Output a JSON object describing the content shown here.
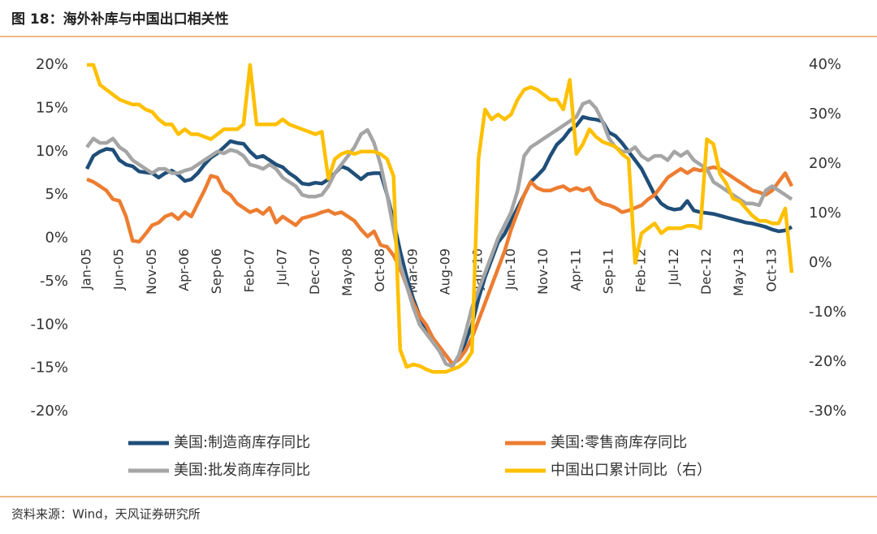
{
  "chart_data": {
    "type": "line",
    "title": "图 18：海外补库与中国出口相关性",
    "source": "资料来源：Wind，天风证券研究所",
    "categories": [
      "Jan-05",
      null,
      null,
      null,
      null,
      "Jun-05",
      null,
      null,
      null,
      null,
      "Nov-05",
      null,
      null,
      null,
      null,
      "Apr-06",
      null,
      null,
      null,
      null,
      "Sep-06",
      null,
      null,
      null,
      null,
      "Feb-07",
      null,
      null,
      null,
      null,
      "Jul-07",
      null,
      null,
      null,
      null,
      "Dec-07",
      null,
      null,
      null,
      null,
      "May-08",
      null,
      null,
      null,
      null,
      "Oct-08",
      null,
      null,
      null,
      null,
      "Mar-09",
      null,
      null,
      null,
      null,
      "Aug-09",
      null,
      null,
      null,
      null,
      "Jan-10",
      null,
      null,
      null,
      null,
      "Jun-10",
      null,
      null,
      null,
      null,
      "Nov-10",
      null,
      null,
      null,
      null,
      "Apr-11",
      null,
      null,
      null,
      null,
      "Sep-11",
      null,
      null,
      null,
      null,
      "Feb-12",
      null,
      null,
      null,
      null,
      "Jul-12",
      null,
      null,
      null,
      null,
      "Dec-12",
      null,
      null,
      null,
      null,
      "May-13",
      null,
      null,
      null,
      null,
      "Oct-13",
      null,
      null,
      null
    ],
    "ylim": [
      -20,
      20
    ],
    "yticks": [
      {
        "value": -20,
        "label": "-20%"
      },
      {
        "value": -15,
        "label": "-15%"
      },
      {
        "value": -10,
        "label": "-10%"
      },
      {
        "value": -5,
        "label": "-5%"
      },
      {
        "value": 0,
        "label": "0%"
      },
      {
        "value": 5,
        "label": "5%"
      },
      {
        "value": 10,
        "label": "10%"
      },
      {
        "value": 15,
        "label": "15%"
      },
      {
        "value": 20,
        "label": "20%"
      }
    ],
    "y2lim": [
      -30,
      40
    ],
    "y2ticks": [
      {
        "value": -30,
        "label": "-30%"
      },
      {
        "value": -20,
        "label": "-20%"
      },
      {
        "value": -10,
        "label": "-10%"
      },
      {
        "value": 0,
        "label": "0%"
      },
      {
        "value": 10,
        "label": "10%"
      },
      {
        "value": 20,
        "label": "20%"
      },
      {
        "value": 30,
        "label": "30%"
      },
      {
        "value": 40,
        "label": "40%"
      }
    ],
    "grid": false,
    "series": [
      {
        "name": "美国:制造商库存同比",
        "color": "#1f4e79",
        "values": [
          8,
          9.5,
          10,
          10.3,
          10.2,
          9,
          8.5,
          8.3,
          7.7,
          7.6,
          7.5,
          7.0,
          7.5,
          7.8,
          7.3,
          6.6,
          6.8,
          7.5,
          8.5,
          9.3,
          9.8,
          10.5,
          11.2,
          11.0,
          10.9,
          10.0,
          9.3,
          9.5,
          9.0,
          8.5,
          8.2,
          7.5,
          7.0,
          6.3,
          6.2,
          6.4,
          6.3,
          6.8,
          7.5,
          8.3,
          8.0,
          7.4,
          6.8,
          7.4,
          7.5,
          7.5,
          5.0,
          2.0,
          -1.5,
          -4.5,
          -7.0,
          -9.0,
          -10.5,
          -11.5,
          -12.8,
          -13.5,
          -14.5,
          -14.0,
          -12.0,
          -10.0,
          -7.0,
          -4.5,
          -2.5,
          -0.5,
          0.5,
          2.0,
          3.5,
          5.0,
          6.5,
          7.2,
          8.0,
          9.5,
          10.8,
          11.5,
          12.5,
          13.0,
          14.0,
          13.8,
          13.7,
          13.5,
          12.2,
          11.8,
          11.0,
          10.0,
          9.0,
          8.0,
          6.5,
          5.0,
          4.0,
          3.5,
          3.3,
          3.4,
          4.3,
          3.2,
          3.0,
          2.9,
          2.8,
          2.6,
          2.4,
          2.2,
          2.0,
          1.8,
          1.7,
          1.5,
          1.3,
          1.0,
          0.8,
          0.9,
          1.3
        ]
      },
      {
        "name": "美国:零售商库存同比",
        "color": "#ed7d31",
        "values": [
          6.8,
          6.5,
          6.0,
          5.5,
          4.5,
          4.3,
          2.5,
          -0.3,
          -0.4,
          0.5,
          1.5,
          1.8,
          2.5,
          2.8,
          2.2,
          3.0,
          2.5,
          4.0,
          5.5,
          7.2,
          7.0,
          5.5,
          5.0,
          4.0,
          3.5,
          3.0,
          3.3,
          2.8,
          3.5,
          1.8,
          2.5,
          2.0,
          1.5,
          2.3,
          2.5,
          2.7,
          3.0,
          3.2,
          2.8,
          3.0,
          2.5,
          2.0,
          1.0,
          0.2,
          0.8,
          -0.8,
          -1.0,
          -2.0,
          -3.5,
          -5.5,
          -7.5,
          -9.0,
          -10.0,
          -11.5,
          -12.5,
          -13.5,
          -14.5,
          -14.0,
          -13.0,
          -11.5,
          -9.5,
          -7.5,
          -5.5,
          -3.5,
          -1.5,
          1.0,
          3.0,
          5.0,
          6.5,
          5.8,
          5.5,
          5.5,
          5.8,
          6.0,
          5.5,
          5.8,
          5.5,
          5.8,
          4.5,
          4.0,
          3.8,
          3.5,
          3.0,
          3.2,
          3.5,
          3.8,
          4.5,
          5.0,
          6.0,
          7.0,
          7.5,
          8.0,
          7.5,
          8.0,
          7.8,
          8.0,
          8.2,
          8.0,
          7.5,
          7.0,
          6.5,
          6.0,
          5.5,
          5.3,
          5.0,
          5.5,
          6.5,
          7.5,
          6.0
        ]
      },
      {
        "name": "美国:批发商库存同比",
        "color": "#a5a5a5",
        "values": [
          10.5,
          11.5,
          11.0,
          11.0,
          11.5,
          10.5,
          10.0,
          9.0,
          8.5,
          8.0,
          7.5,
          8.0,
          8.0,
          7.5,
          7.5,
          7.8,
          8.0,
          8.5,
          9.0,
          9.5,
          10.0,
          9.8,
          10.2,
          10.0,
          9.5,
          8.5,
          8.3,
          8.0,
          8.5,
          8.0,
          7.0,
          6.5,
          6.0,
          5.0,
          4.8,
          4.8,
          5.0,
          6.0,
          7.5,
          8.5,
          9.5,
          10.5,
          12.0,
          12.5,
          11.0,
          8.5,
          5.0,
          1.0,
          -3.0,
          -5.5,
          -8.0,
          -10.0,
          -11.0,
          -12.0,
          -13.0,
          -14.5,
          -14.8,
          -13.5,
          -11.0,
          -8.0,
          -6.0,
          -4.0,
          -2.0,
          0,
          1.5,
          3.0,
          5.5,
          9.5,
          10.5,
          11.0,
          11.5,
          12.0,
          12.5,
          13.0,
          13.5,
          14.0,
          15.5,
          15.8,
          15.0,
          13.5,
          11.5,
          10.5,
          10.0,
          10.0,
          10.5,
          9.5,
          9.0,
          9.5,
          9.5,
          9.0,
          10.0,
          9.5,
          10.0,
          9.0,
          8.5,
          8.0,
          6.5,
          6.0,
          5.5,
          5.0,
          4.5,
          4.0,
          4.0,
          3.8,
          5.5,
          6.0,
          5.5,
          5.0,
          4.5
        ]
      },
      {
        "name": "中国出口累计同比（右）",
        "color": "#ffc000",
        "axis": "y2",
        "values": [
          40,
          40,
          36,
          35,
          34,
          33,
          32.5,
          32,
          32,
          31,
          30.5,
          29,
          28,
          28,
          26,
          27,
          26,
          26,
          25.5,
          25,
          26,
          27,
          27,
          27,
          28,
          40,
          28,
          28,
          28,
          28,
          29,
          28,
          27.5,
          27,
          26.5,
          26,
          26.5,
          17,
          21,
          22,
          22.5,
          22,
          22.5,
          22.5,
          22.5,
          22,
          21,
          17.5,
          -17.5,
          -21,
          -20.5,
          -20.8,
          -21.5,
          -22,
          -22,
          -22,
          -21.5,
          -21,
          -20,
          -18,
          21,
          31,
          29,
          30,
          29,
          30,
          33,
          35,
          35.5,
          35,
          34,
          33,
          33,
          31,
          37,
          22,
          24,
          27,
          25.5,
          24.5,
          24,
          23.5,
          22,
          21,
          0,
          6,
          7,
          8,
          6,
          7,
          7,
          7,
          7.5,
          7.5,
          7,
          25,
          24,
          18,
          16,
          13,
          12.5,
          11,
          9.5,
          8.5,
          8.5,
          8,
          8,
          11,
          -2
        ]
      }
    ]
  }
}
